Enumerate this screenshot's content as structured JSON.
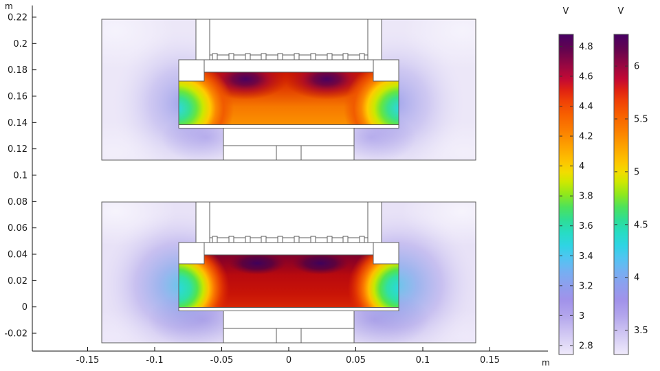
{
  "figure": {
    "kind": "COMSOL-style 2D electrostatic surface plot, two plasma reactor cross-sections",
    "background": "#ffffff"
  },
  "chart_data": {
    "type": "heatmap",
    "title": "",
    "x_axis": {
      "unit": "m",
      "ticks": [
        -0.15,
        -0.1,
        -0.05,
        0,
        0.05,
        0.1,
        0.15
      ],
      "range": [
        -0.191,
        0.198
      ]
    },
    "y_axis": {
      "unit": "m",
      "ticks": [
        0.22,
        0.2,
        0.18,
        0.16,
        0.14,
        0.12,
        0.1,
        0.08,
        0.06,
        0.04,
        0.02,
        0,
        -0.02
      ],
      "range": [
        -0.034,
        0.228
      ]
    },
    "colorbars": [
      {
        "title": "V",
        "ticks": [
          4.8,
          4.6,
          4.4,
          4.2,
          4,
          3.8,
          3.6,
          3.4,
          3.2,
          3,
          2.8
        ],
        "min": 2.74,
        "max": 4.88
      },
      {
        "title": "V",
        "ticks": [
          6,
          5.5,
          5,
          4.5,
          4,
          3.5
        ],
        "min": 3.27,
        "max": 6.3
      }
    ],
    "colormap": [
      {
        "f": 0.0,
        "c": "#470063"
      },
      {
        "f": 0.05,
        "c": "#66044e"
      },
      {
        "f": 0.1,
        "c": "#9a0741"
      },
      {
        "f": 0.14,
        "c": "#c30934"
      },
      {
        "f": 0.175,
        "c": "#e02312"
      },
      {
        "f": 0.21,
        "c": "#f04206"
      },
      {
        "f": 0.25,
        "c": "#f75f00"
      },
      {
        "f": 0.3,
        "c": "#fb7e00"
      },
      {
        "f": 0.35,
        "c": "#fda200"
      },
      {
        "f": 0.4,
        "c": "#fdc600"
      },
      {
        "f": 0.43,
        "c": "#f2dc00"
      },
      {
        "f": 0.46,
        "c": "#cfe800"
      },
      {
        "f": 0.5,
        "c": "#8fe81c"
      },
      {
        "f": 0.54,
        "c": "#4ce25c"
      },
      {
        "f": 0.58,
        "c": "#2edd96"
      },
      {
        "f": 0.62,
        "c": "#27dcc4"
      },
      {
        "f": 0.66,
        "c": "#2fd4e4"
      },
      {
        "f": 0.7,
        "c": "#52c4f2"
      },
      {
        "f": 0.74,
        "c": "#74b0f2"
      },
      {
        "f": 0.78,
        "c": "#8ca0ee"
      },
      {
        "f": 0.83,
        "c": "#a192ea"
      },
      {
        "f": 0.88,
        "c": "#b3a6ec"
      },
      {
        "f": 0.93,
        "c": "#cec4f2"
      },
      {
        "f": 1.0,
        "c": "#efeafb"
      }
    ],
    "series": [
      {
        "name": "upper reactor electric potential",
        "colorbar_index": 0,
        "value_range_V": [
          2.74,
          4.88
        ],
        "notes": "two dark-purple minima lobes under showerhead, orange-red gap core, rainbow fringe at gap edges, pale lavender field in side chambers"
      },
      {
        "name": "lower reactor electric potential",
        "colorbar_index": 1,
        "value_range_V": [
          3.27,
          6.3
        ],
        "notes": "deep red gap core with dark-purple lobes at top, compressed rainbow fringe at gap edges, strong blue-violet halos in side chambers"
      }
    ]
  }
}
